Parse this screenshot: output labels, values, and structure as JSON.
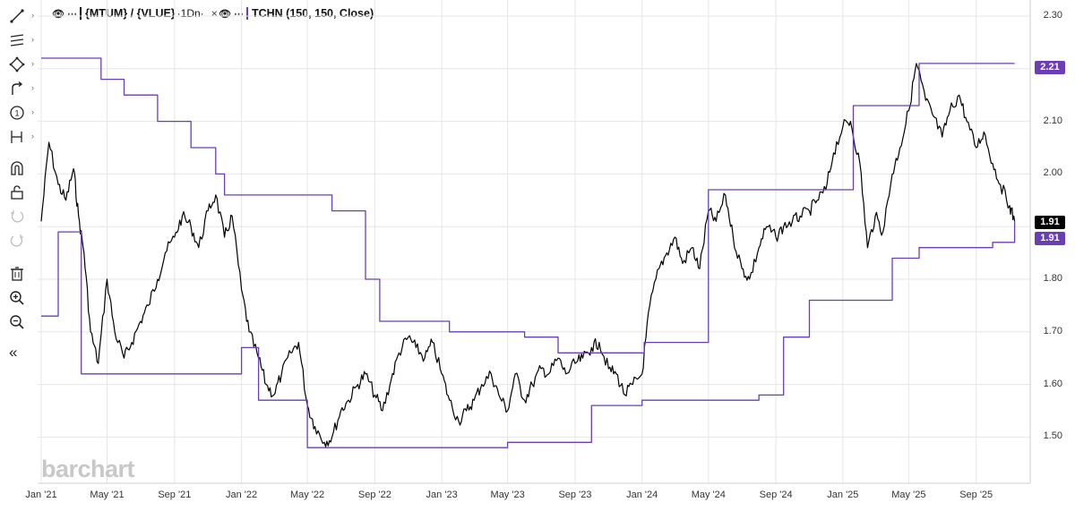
{
  "legend": {
    "main_symbol": "{MTUM} / {VLUE}",
    "interval": "·1Dn·",
    "main_color": "#000000",
    "study_label": "TCHN (150, 150, Close)",
    "study_color": "#6a3fb5",
    "close_glyph": "×",
    "eye_glyph": "👁",
    "more_glyph": "⋯"
  },
  "toolbar": {
    "tools": [
      "line-tool-icon",
      "fib-tool-icon",
      "shape-tool-icon",
      "arrow-tool-icon",
      "number-tool-icon",
      "measure-tool-icon",
      "magnet-icon",
      "lock-icon",
      "undo-icon",
      "redo-icon",
      "trash-icon",
      "zoom-in-icon",
      "zoom-out-icon",
      "collapse-icon"
    ],
    "collapse_glyph": "«"
  },
  "watermark": "barchart",
  "badges": {
    "upper": "2.21",
    "last": "1.91",
    "lower": "1.91"
  },
  "chart_data": {
    "type": "line",
    "title": "",
    "xlabel": "",
    "ylabel": "",
    "ylim": [
      1.45,
      2.31
    ],
    "grid": true,
    "y_ticks": [
      "2.30",
      "2.20",
      "2.10",
      "2.00",
      "1.90",
      "1.80",
      "1.70",
      "1.60",
      "1.50"
    ],
    "x_ticks": [
      "Jan '21",
      "May '21",
      "Sep '21",
      "Jan '22",
      "May '22",
      "Sep '22",
      "Jan '23",
      "May '23",
      "Sep '23",
      "Jan '24",
      "May '24",
      "Sep '24",
      "Jan '25",
      "May '25",
      "Sep '25"
    ],
    "series": [
      {
        "name": "{MTUM} / {VLUE}",
        "color": "#000000",
        "x": [
          "2021-01-01",
          "2021-01-15",
          "2021-02-01",
          "2021-02-15",
          "2021-03-01",
          "2021-03-10",
          "2021-03-20",
          "2021-04-01",
          "2021-04-15",
          "2021-05-01",
          "2021-05-15",
          "2021-06-01",
          "2021-06-15",
          "2021-07-01",
          "2021-07-15",
          "2021-08-01",
          "2021-08-15",
          "2021-09-01",
          "2021-09-15",
          "2021-10-01",
          "2021-10-15",
          "2021-11-01",
          "2021-11-15",
          "2021-12-01",
          "2021-12-15",
          "2022-01-01",
          "2022-01-15",
          "2022-02-01",
          "2022-02-15",
          "2022-03-01",
          "2022-03-15",
          "2022-04-01",
          "2022-04-15",
          "2022-05-01",
          "2022-05-15",
          "2022-06-01",
          "2022-06-15",
          "2022-07-01",
          "2022-07-15",
          "2022-08-01",
          "2022-08-15",
          "2022-09-01",
          "2022-09-15",
          "2022-10-01",
          "2022-10-15",
          "2022-11-01",
          "2022-11-15",
          "2022-12-01",
          "2022-12-15",
          "2023-01-01",
          "2023-01-15",
          "2023-02-01",
          "2023-02-15",
          "2023-03-01",
          "2023-03-15",
          "2023-04-01",
          "2023-04-15",
          "2023-05-01",
          "2023-05-15",
          "2023-06-01",
          "2023-06-15",
          "2023-07-01",
          "2023-07-15",
          "2023-08-01",
          "2023-08-15",
          "2023-09-01",
          "2023-09-15",
          "2023-10-01",
          "2023-10-15",
          "2023-11-01",
          "2023-11-15",
          "2023-12-01",
          "2023-12-15",
          "2024-01-01",
          "2024-01-15",
          "2024-02-01",
          "2024-02-15",
          "2024-03-01",
          "2024-03-15",
          "2024-04-01",
          "2024-04-15",
          "2024-05-01",
          "2024-05-15",
          "2024-06-01",
          "2024-06-15",
          "2024-07-01",
          "2024-07-15",
          "2024-08-01",
          "2024-08-15",
          "2024-09-01",
          "2024-09-15",
          "2024-10-01",
          "2024-10-15",
          "2024-11-01",
          "2024-11-15",
          "2024-12-01",
          "2024-12-15",
          "2025-01-01",
          "2025-01-15",
          "2025-02-01",
          "2025-02-15",
          "2025-03-01",
          "2025-03-15",
          "2025-04-01",
          "2025-04-15",
          "2025-05-01",
          "2025-05-15",
          "2025-06-01",
          "2025-06-15",
          "2025-07-01",
          "2025-07-15",
          "2025-08-01",
          "2025-08-15",
          "2025-09-01",
          "2025-09-15",
          "2025-10-01",
          "2025-10-15",
          "2025-11-01",
          "2025-11-10"
        ],
        "values": [
          1.91,
          2.06,
          1.98,
          1.95,
          2.01,
          1.92,
          1.85,
          1.7,
          1.64,
          1.8,
          1.7,
          1.65,
          1.68,
          1.72,
          1.75,
          1.8,
          1.85,
          1.88,
          1.92,
          1.9,
          1.86,
          1.93,
          1.96,
          1.88,
          1.92,
          1.78,
          1.7,
          1.65,
          1.6,
          1.58,
          1.62,
          1.66,
          1.68,
          1.56,
          1.52,
          1.49,
          1.5,
          1.55,
          1.57,
          1.6,
          1.62,
          1.58,
          1.55,
          1.61,
          1.66,
          1.69,
          1.67,
          1.65,
          1.68,
          1.62,
          1.57,
          1.53,
          1.55,
          1.57,
          1.6,
          1.62,
          1.58,
          1.55,
          1.62,
          1.57,
          1.6,
          1.63,
          1.62,
          1.65,
          1.62,
          1.64,
          1.65,
          1.67,
          1.68,
          1.63,
          1.62,
          1.58,
          1.6,
          1.62,
          1.75,
          1.82,
          1.85,
          1.88,
          1.83,
          1.86,
          1.82,
          1.93,
          1.91,
          1.96,
          1.88,
          1.82,
          1.8,
          1.86,
          1.9,
          1.88,
          1.9,
          1.91,
          1.92,
          1.93,
          1.95,
          1.97,
          2.04,
          2.09,
          2.1,
          2.02,
          1.86,
          1.92,
          1.89,
          2.0,
          2.05,
          2.12,
          2.21,
          2.14,
          2.11,
          2.07,
          2.12,
          2.15,
          2.1,
          2.05,
          2.08,
          2.02,
          1.98,
          1.94,
          1.91
        ]
      },
      {
        "name": "TCHN upper",
        "color": "#6a3fb5",
        "x": [
          "2021-01-01",
          "2021-04-05",
          "2021-04-20",
          "2021-06-01",
          "2021-08-01",
          "2021-10-01",
          "2021-11-15",
          "2021-12-01",
          "2022-05-15",
          "2022-06-15",
          "2022-08-15",
          "2022-09-10",
          "2023-01-15",
          "2023-06-01",
          "2023-08-01",
          "2024-01-05",
          "2024-05-01",
          "2024-12-01",
          "2025-01-20",
          "2025-05-20",
          "2025-11-10"
        ],
        "values": [
          2.22,
          2.22,
          2.18,
          2.15,
          2.1,
          2.05,
          2.0,
          1.96,
          1.96,
          1.93,
          1.8,
          1.72,
          1.7,
          1.69,
          1.66,
          1.68,
          1.97,
          1.97,
          2.13,
          2.21,
          2.21
        ]
      },
      {
        "name": "TCHN lower",
        "color": "#6a3fb5",
        "x": [
          "2021-01-01",
          "2021-01-20",
          "2021-02-01",
          "2021-03-15",
          "2021-09-01",
          "2022-01-01",
          "2022-02-01",
          "2022-04-15",
          "2022-05-01",
          "2023-01-01",
          "2023-05-01",
          "2023-08-01",
          "2023-10-01",
          "2024-01-01",
          "2024-08-01",
          "2024-09-15",
          "2024-11-01",
          "2025-01-01",
          "2025-04-01",
          "2025-05-20",
          "2025-10-01",
          "2025-11-10"
        ],
        "values": [
          1.73,
          1.73,
          1.89,
          1.62,
          1.62,
          1.67,
          1.57,
          1.57,
          1.48,
          1.48,
          1.49,
          1.49,
          1.56,
          1.57,
          1.58,
          1.69,
          1.76,
          1.76,
          1.84,
          1.86,
          1.87,
          1.91
        ]
      }
    ]
  }
}
